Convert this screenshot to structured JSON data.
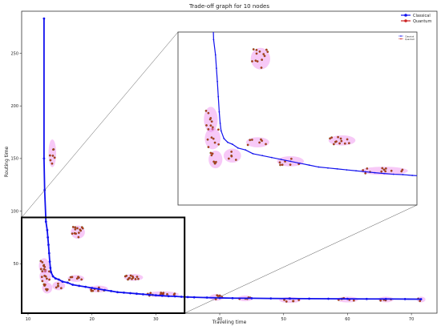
{
  "chart_data": {
    "type": "line",
    "title": "Trade-off graph for 10 nodes",
    "xlabel": "Traveling time",
    "ylabel": "Routing time",
    "xlim": [
      9,
      74
    ],
    "ylim": [
      3,
      290
    ],
    "xticks": [
      10,
      20,
      30,
      40,
      50,
      60,
      70
    ],
    "yticks": [
      50,
      100,
      150,
      200,
      250
    ],
    "legend_position": "top-right",
    "inset_legend_position": "top-right",
    "zoom_region": {
      "x": [
        9,
        34.5
      ],
      "y": [
        3,
        94
      ]
    },
    "colors": {
      "classical": "#1111ee",
      "quantum_fill": "#cc2222",
      "quantum_edge": "#5a6a10",
      "halo": "#ee88ee",
      "frame": "#000000"
    },
    "series": [
      {
        "name": "Classical",
        "values": [
          [
            12.5,
            283
          ],
          [
            12.5,
            150
          ],
          [
            12.6,
            120
          ],
          [
            12.8,
            90
          ],
          [
            13.0,
            82
          ],
          [
            13.1,
            75
          ],
          [
            13.2,
            68
          ],
          [
            13.3,
            60
          ],
          [
            13.4,
            52
          ],
          [
            13.5,
            46
          ],
          [
            13.6,
            42
          ],
          [
            13.9,
            38
          ],
          [
            14.3,
            36
          ],
          [
            14.8,
            35
          ],
          [
            15.4,
            33
          ],
          [
            16.2,
            32
          ],
          [
            17.0,
            30
          ],
          [
            18.0,
            29
          ],
          [
            19.0,
            28
          ],
          [
            20.0,
            27
          ],
          [
            21.0,
            26
          ],
          [
            22.0,
            25
          ],
          [
            23.0,
            24
          ],
          [
            24.0,
            23
          ],
          [
            25.0,
            22.5
          ],
          [
            26.0,
            22
          ],
          [
            27.0,
            21.5
          ],
          [
            28.0,
            21
          ],
          [
            29.0,
            20.5
          ],
          [
            30.0,
            20
          ],
          [
            31.0,
            19.6
          ],
          [
            32.0,
            19.2
          ],
          [
            33.0,
            19
          ],
          [
            34.0,
            18.6
          ],
          [
            35.0,
            18.3
          ],
          [
            36.0,
            18.1
          ],
          [
            38.0,
            17.8
          ],
          [
            40.0,
            17.5
          ],
          [
            42.0,
            17.3
          ],
          [
            45.0,
            17.2
          ],
          [
            48.0,
            17
          ],
          [
            51.0,
            16.9
          ],
          [
            54.0,
            16.8
          ],
          [
            57.0,
            16.7
          ],
          [
            60.0,
            16.6
          ],
          [
            63.0,
            16.5
          ],
          [
            66.0,
            16.5
          ],
          [
            69.0,
            16.4
          ],
          [
            71.5,
            16.3
          ]
        ]
      },
      {
        "name": "Quantum",
        "clusters": [
          {
            "x": 12.5,
            "y": 48,
            "spread": [
              0.6,
              6
            ],
            "n": 9
          },
          {
            "x": 12.7,
            "y": 38,
            "spread": [
              0.7,
              5
            ],
            "n": 8
          },
          {
            "x": 13.0,
            "y": 27,
            "spread": [
              0.6,
              4
            ],
            "n": 7
          },
          {
            "x": 13.8,
            "y": 155,
            "spread": [
              0.4,
              12
            ],
            "n": 7
          },
          {
            "x": 14.8,
            "y": 29,
            "spread": [
              0.8,
              3
            ],
            "n": 5
          },
          {
            "x": 17.8,
            "y": 80,
            "spread": [
              0.9,
              5
            ],
            "n": 13
          },
          {
            "x": 17.5,
            "y": 36,
            "spread": [
              1.1,
              2
            ],
            "n": 7
          },
          {
            "x": 21.0,
            "y": 26,
            "spread": [
              1.3,
              2
            ],
            "n": 7
          },
          {
            "x": 26.5,
            "y": 37,
            "spread": [
              1.3,
              2
            ],
            "n": 12
          },
          {
            "x": 31.0,
            "y": 21,
            "spread": [
              2.4,
              1.5
            ],
            "n": 12
          },
          {
            "x": 39.5,
            "y": 18,
            "spread": [
              0.9,
              2
            ],
            "n": 5
          },
          {
            "x": 44.0,
            "y": 17,
            "spread": [
              1.0,
              1.5
            ],
            "n": 5
          },
          {
            "x": 51.0,
            "y": 15.5,
            "spread": [
              1.5,
              1.5
            ],
            "n": 6
          },
          {
            "x": 60.0,
            "y": 16,
            "spread": [
              1.5,
              1.5
            ],
            "n": 6
          },
          {
            "x": 66.0,
            "y": 16,
            "spread": [
              1.0,
              1.5
            ],
            "n": 4
          },
          {
            "x": 71.5,
            "y": 16,
            "spread": [
              0.5,
              1.5
            ],
            "n": 3
          }
        ]
      }
    ]
  }
}
